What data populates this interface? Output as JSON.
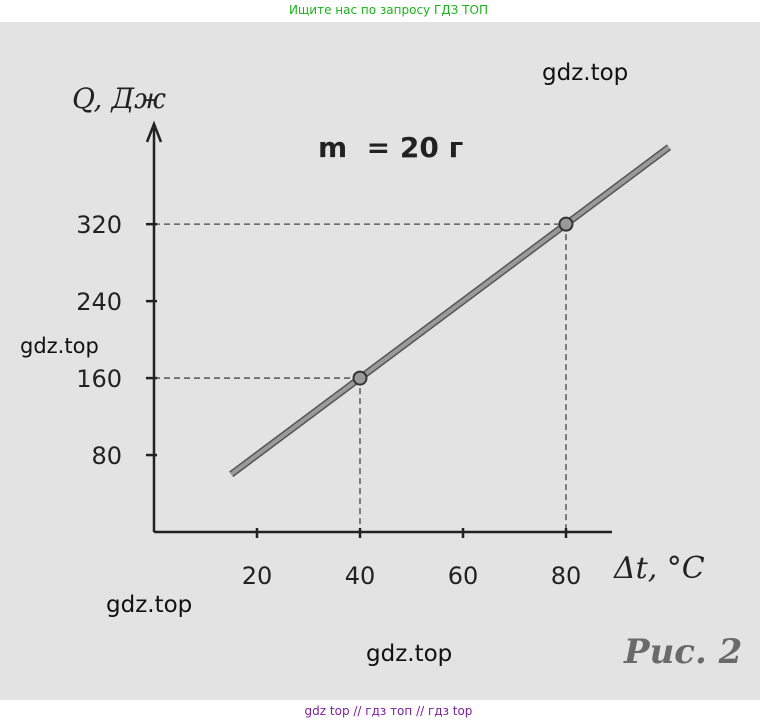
{
  "top_banner": "Ищите нас по запросу ГДЗ ТОП",
  "bottom_banner": "gdz top  //  гдз топ  //  гдз top",
  "watermarks": [
    "gdz.top",
    "gdz.top",
    "gdz.top",
    "gdz.top"
  ],
  "figure_caption": "Рис. 2",
  "colors": {
    "line": "#9a9a9a",
    "axis": "#222222",
    "background": "#e3e3e3",
    "top_banner_text": "#1bb31b",
    "bottom_banner_text": "#7b1f9a"
  },
  "chart_data": {
    "type": "line",
    "title": "m  = 20 г",
    "ylabel": "Q, Дж",
    "xlabel": "Δt, °C",
    "xlim": [
      0,
      100
    ],
    "ylim": [
      0,
      400
    ],
    "x_ticks": [
      20,
      40,
      60,
      80
    ],
    "y_ticks": [
      80,
      160,
      240,
      320
    ],
    "grid": false,
    "series": [
      {
        "x": [
          15,
          100
        ],
        "y": [
          60,
          400
        ]
      }
    ],
    "marked_points": [
      {
        "x": 40,
        "y": 160
      },
      {
        "x": 80,
        "y": 320
      }
    ]
  }
}
